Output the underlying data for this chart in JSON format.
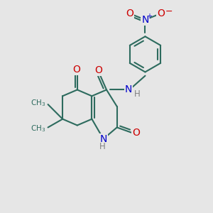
{
  "bg_color": "#e6e6e6",
  "bond_color": "#2d6b5e",
  "atom_colors": {
    "O": "#cc0000",
    "N": "#0000cc",
    "H": "#808080"
  },
  "bond_lw": 1.5,
  "font_size": 10,
  "font_size_small": 8.5
}
